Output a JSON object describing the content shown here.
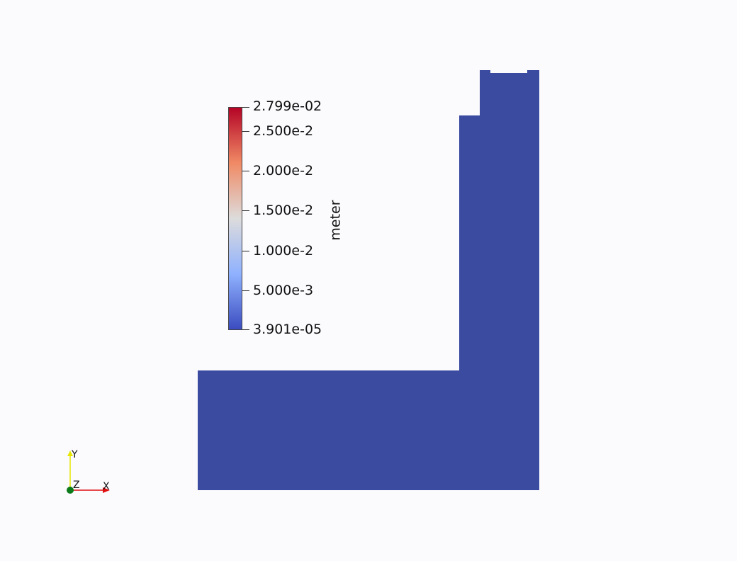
{
  "colorbar": {
    "unit": "meter",
    "max_label": "2.799e-02",
    "min_label": "3.901e-05",
    "max_value": 0.02799,
    "min_value": 3.901e-05,
    "ticks": [
      {
        "label": "2.500e-2",
        "value": 0.025
      },
      {
        "label": "2.000e-2",
        "value": 0.02
      },
      {
        "label": "1.500e-2",
        "value": 0.015
      },
      {
        "label": "1.000e-2",
        "value": 0.01
      },
      {
        "label": "5.000e-3",
        "value": 0.005
      }
    ],
    "colors": {
      "top": "#b40426",
      "upper_mid": "#f08a65",
      "mid": "#dddcdc",
      "lower_mid": "#8fb1fe",
      "bottom": "#3b4cc0"
    }
  },
  "mesh": {
    "fill_color": "#3a4ba0",
    "background": "#fbfbfe"
  },
  "orientation_axes": {
    "x_label": "X",
    "y_label": "Y",
    "z_label": "Z",
    "x_color": "#e01010",
    "y_color": "#e6e600",
    "z_color": "#0a7a1a"
  }
}
